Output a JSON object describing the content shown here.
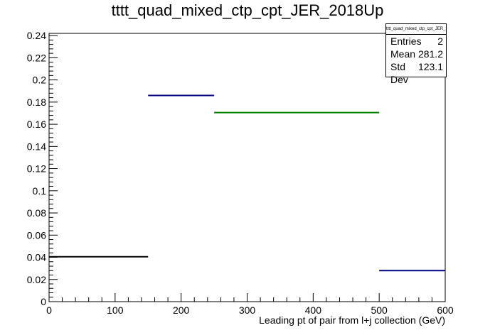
{
  "title": "tttt_quad_mixed_ctp_cpt_JER_2018Up",
  "stats": {
    "name": "tttt_quad_mixed_ctp_cpt_JER_2018Up",
    "rows": [
      {
        "label": "Entries",
        "value": "2"
      },
      {
        "label": "Mean",
        "value": "281.2"
      },
      {
        "label": "Std Dev",
        "value": "123.1"
      }
    ]
  },
  "chart_data": {
    "type": "histogram",
    "title": "tttt_quad_mixed_ctp_cpt_JER_2018Up",
    "xlabel": "Leading pt of pair from l+j collection (GeV)",
    "ylabel": "",
    "xlim": [
      0,
      600
    ],
    "ylim": [
      0,
      0.242
    ],
    "x_ticks": [
      0,
      100,
      200,
      300,
      400,
      500,
      600
    ],
    "x_tick_labels": [
      "0",
      "100",
      "200",
      "300",
      "400",
      "500",
      "600"
    ],
    "y_ticks": [
      0,
      0.02,
      0.04,
      0.06,
      0.08,
      0.1,
      0.12,
      0.14,
      0.16,
      0.18,
      0.2,
      0.22,
      0.24
    ],
    "y_tick_labels": [
      "0",
      "0.02",
      "0.04",
      "0.06",
      "0.08",
      "0.1",
      "0.12",
      "0.14",
      "0.16",
      "0.18",
      "0.2",
      "0.22",
      "0.24"
    ],
    "grid": false,
    "bins": [
      {
        "x0": 0,
        "x1": 150,
        "value": 0.0405,
        "color": "#000000"
      },
      {
        "x0": 150,
        "x1": 250,
        "value": 0.186,
        "color": "#000080"
      },
      {
        "x0": 250,
        "x1": 500,
        "value": 0.1705,
        "color": "#008000"
      },
      {
        "x0": 500,
        "x1": 600,
        "value": 0.028,
        "color": "#000080"
      }
    ]
  }
}
